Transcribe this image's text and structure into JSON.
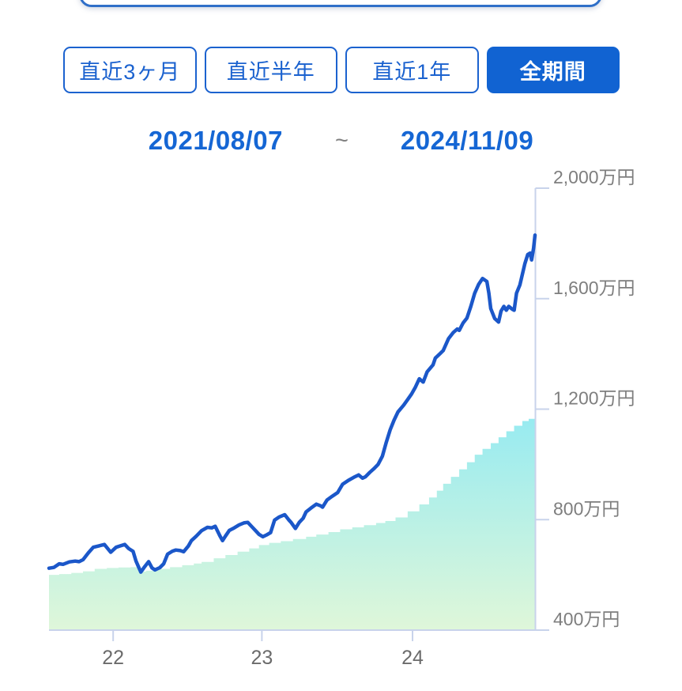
{
  "period_buttons": [
    {
      "label": "直近3ヶ月",
      "active": false
    },
    {
      "label": "直近半年",
      "active": false
    },
    {
      "label": "直近1年",
      "active": false
    },
    {
      "label": "全期間",
      "active": true
    }
  ],
  "date_range": {
    "start": "2021/08/07",
    "separator": "~",
    "end": "2024/11/09"
  },
  "colors": {
    "accent_blue": "#1163d2",
    "outline_blue": "#1b62cf",
    "date_blue": "#1566d4",
    "line_blue": "#1b57c9",
    "area_top": "#8de9f4",
    "area_bottom": "#e0f7d9",
    "axis": "#c8d3eb",
    "y_label_gray": "#7e7e7e",
    "x_label_gray": "#6b6b6b"
  },
  "chart_data": {
    "type": "line",
    "title": "",
    "unit": "万円",
    "x_range_dates": [
      "2021/08/07",
      "2024/11/09"
    ],
    "ylim": [
      400,
      2000
    ],
    "grid": false,
    "legend": "none",
    "y_ticks": [
      {
        "value": 400,
        "label": "400万円"
      },
      {
        "value": 800,
        "label": "800万円"
      },
      {
        "value": 1200,
        "label": "1,200万円"
      },
      {
        "value": 1600,
        "label": "1,600万円"
      },
      {
        "value": 2000,
        "label": "2,000万円"
      }
    ],
    "x_ticks": [
      {
        "t": 0.132,
        "label": "22"
      },
      {
        "t": 0.438,
        "label": "23"
      },
      {
        "t": 0.748,
        "label": "24"
      }
    ],
    "series": [
      {
        "name": "line_series",
        "style": "line",
        "points": [
          [
            0.0,
            624
          ],
          [
            0.01,
            627
          ],
          [
            0.021,
            640
          ],
          [
            0.029,
            638
          ],
          [
            0.042,
            647
          ],
          [
            0.054,
            650
          ],
          [
            0.062,
            648
          ],
          [
            0.07,
            655
          ],
          [
            0.081,
            680
          ],
          [
            0.091,
            700
          ],
          [
            0.103,
            705
          ],
          [
            0.114,
            710
          ],
          [
            0.127,
            682
          ],
          [
            0.138,
            700
          ],
          [
            0.147,
            705
          ],
          [
            0.156,
            710
          ],
          [
            0.164,
            695
          ],
          [
            0.173,
            685
          ],
          [
            0.179,
            650
          ],
          [
            0.189,
            610
          ],
          [
            0.197,
            630
          ],
          [
            0.205,
            648
          ],
          [
            0.212,
            625
          ],
          [
            0.218,
            618
          ],
          [
            0.228,
            626
          ],
          [
            0.236,
            640
          ],
          [
            0.244,
            675
          ],
          [
            0.254,
            686
          ],
          [
            0.261,
            690
          ],
          [
            0.27,
            688
          ],
          [
            0.277,
            684
          ],
          [
            0.287,
            705
          ],
          [
            0.293,
            724
          ],
          [
            0.303,
            740
          ],
          [
            0.314,
            760
          ],
          [
            0.326,
            772
          ],
          [
            0.335,
            770
          ],
          [
            0.342,
            776
          ],
          [
            0.352,
            740
          ],
          [
            0.357,
            724
          ],
          [
            0.363,
            740
          ],
          [
            0.371,
            761
          ],
          [
            0.381,
            770
          ],
          [
            0.391,
            781
          ],
          [
            0.401,
            788
          ],
          [
            0.409,
            790
          ],
          [
            0.417,
            775
          ],
          [
            0.425,
            760
          ],
          [
            0.432,
            747
          ],
          [
            0.44,
            738
          ],
          [
            0.448,
            745
          ],
          [
            0.456,
            753
          ],
          [
            0.464,
            798
          ],
          [
            0.474,
            810
          ],
          [
            0.485,
            818
          ],
          [
            0.493,
            800
          ],
          [
            0.498,
            790
          ],
          [
            0.507,
            768
          ],
          [
            0.515,
            790
          ],
          [
            0.523,
            805
          ],
          [
            0.529,
            828
          ],
          [
            0.539,
            842
          ],
          [
            0.55,
            856
          ],
          [
            0.559,
            850
          ],
          [
            0.563,
            845
          ],
          [
            0.572,
            871
          ],
          [
            0.583,
            885
          ],
          [
            0.594,
            898
          ],
          [
            0.604,
            928
          ],
          [
            0.616,
            942
          ],
          [
            0.627,
            953
          ],
          [
            0.637,
            962
          ],
          [
            0.645,
            950
          ],
          [
            0.651,
            955
          ],
          [
            0.66,
            971
          ],
          [
            0.669,
            985
          ],
          [
            0.677,
            1000
          ],
          [
            0.686,
            1030
          ],
          [
            0.694,
            1080
          ],
          [
            0.702,
            1125
          ],
          [
            0.71,
            1160
          ],
          [
            0.718,
            1190
          ],
          [
            0.73,
            1215
          ],
          [
            0.738,
            1235
          ],
          [
            0.746,
            1255
          ],
          [
            0.754,
            1280
          ],
          [
            0.762,
            1310
          ],
          [
            0.77,
            1298
          ],
          [
            0.778,
            1335
          ],
          [
            0.79,
            1360
          ],
          [
            0.795,
            1385
          ],
          [
            0.804,
            1400
          ],
          [
            0.811,
            1412
          ],
          [
            0.822,
            1455
          ],
          [
            0.832,
            1478
          ],
          [
            0.84,
            1490
          ],
          [
            0.844,
            1485
          ],
          [
            0.852,
            1512
          ],
          [
            0.86,
            1530
          ],
          [
            0.868,
            1572
          ],
          [
            0.876,
            1620
          ],
          [
            0.884,
            1652
          ],
          [
            0.892,
            1673
          ],
          [
            0.901,
            1662
          ],
          [
            0.905,
            1620
          ],
          [
            0.909,
            1564
          ],
          [
            0.917,
            1528
          ],
          [
            0.925,
            1515
          ],
          [
            0.93,
            1555
          ],
          [
            0.936,
            1572
          ],
          [
            0.941,
            1558
          ],
          [
            0.946,
            1572
          ],
          [
            0.953,
            1562
          ],
          [
            0.957,
            1558
          ],
          [
            0.962,
            1620
          ],
          [
            0.969,
            1650
          ],
          [
            0.974,
            1688
          ],
          [
            0.979,
            1726
          ],
          [
            0.985,
            1760
          ],
          [
            0.99,
            1765
          ],
          [
            0.993,
            1740
          ],
          [
            0.997,
            1783
          ],
          [
            1.0,
            1830
          ]
        ]
      },
      {
        "name": "area_series",
        "style": "step-area",
        "points": [
          [
            0.0,
            600
          ],
          [
            0.021,
            603
          ],
          [
            0.046,
            607
          ],
          [
            0.07,
            613
          ],
          [
            0.094,
            622
          ],
          [
            0.119,
            625
          ],
          [
            0.143,
            627
          ],
          [
            0.168,
            628
          ],
          [
            0.184,
            612
          ],
          [
            0.2,
            615
          ],
          [
            0.225,
            622
          ],
          [
            0.249,
            628
          ],
          [
            0.274,
            635
          ],
          [
            0.298,
            641
          ],
          [
            0.314,
            647
          ],
          [
            0.339,
            660
          ],
          [
            0.363,
            672
          ],
          [
            0.388,
            684
          ],
          [
            0.412,
            696
          ],
          [
            0.432,
            708
          ],
          [
            0.453,
            716
          ],
          [
            0.477,
            722
          ],
          [
            0.502,
            730
          ],
          [
            0.529,
            738
          ],
          [
            0.55,
            746
          ],
          [
            0.575,
            755
          ],
          [
            0.599,
            765
          ],
          [
            0.624,
            772
          ],
          [
            0.648,
            780
          ],
          [
            0.673,
            788
          ],
          [
            0.692,
            795
          ],
          [
            0.713,
            808
          ],
          [
            0.738,
            830
          ],
          [
            0.762,
            855
          ],
          [
            0.782,
            880
          ],
          [
            0.798,
            905
          ],
          [
            0.811,
            930
          ],
          [
            0.827,
            955
          ],
          [
            0.844,
            982
          ],
          [
            0.86,
            1008
          ],
          [
            0.876,
            1035
          ],
          [
            0.892,
            1056
          ],
          [
            0.909,
            1077
          ],
          [
            0.925,
            1098
          ],
          [
            0.941,
            1120
          ],
          [
            0.957,
            1140
          ],
          [
            0.974,
            1157
          ],
          [
            0.987,
            1165
          ],
          [
            1.0,
            1172
          ]
        ]
      }
    ]
  }
}
